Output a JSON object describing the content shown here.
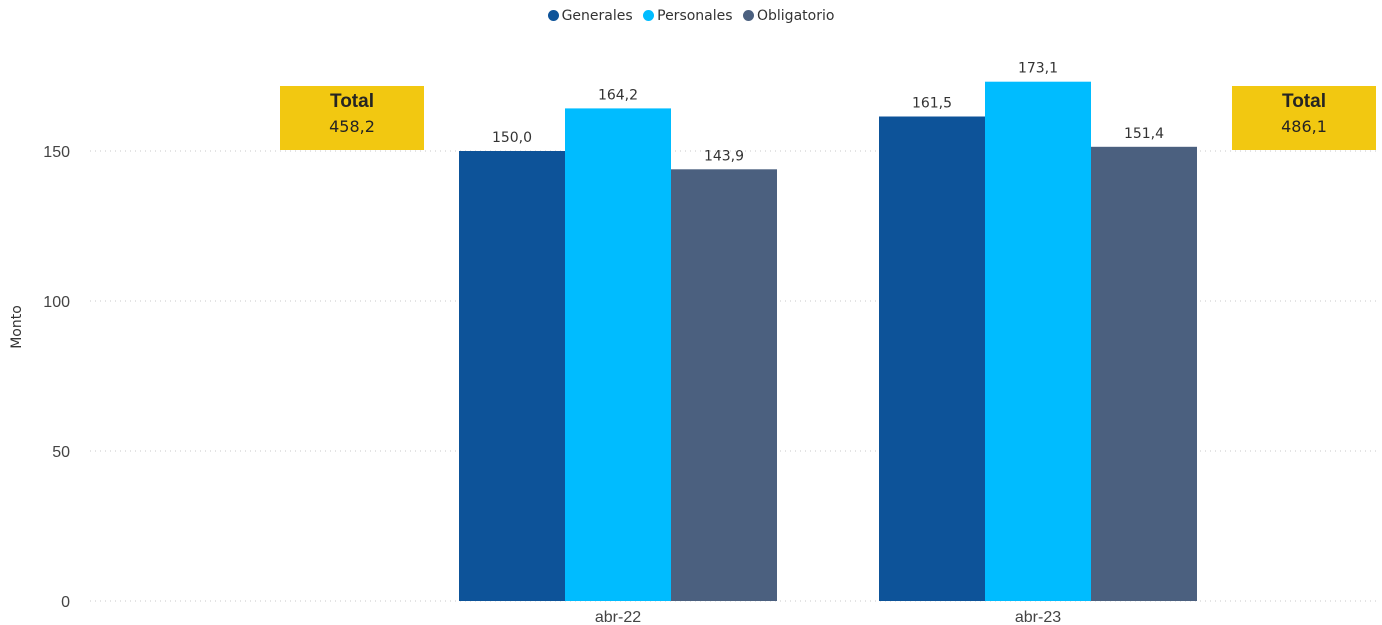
{
  "legend": [
    {
      "name": "Generales",
      "color": "#0d5399"
    },
    {
      "name": "Personales",
      "color": "#00bcff"
    },
    {
      "name": "Obligatorio",
      "color": "#4b607f"
    }
  ],
  "totals": [
    {
      "label": "Total",
      "value": "458,2"
    },
    {
      "label": "Total",
      "value": "486,1"
    }
  ],
  "chart_data": {
    "type": "bar",
    "categories": [
      "abr-22",
      "abr-23"
    ],
    "series": [
      {
        "name": "Generales",
        "color": "#0d5399",
        "values": [
          150.0,
          161.5
        ],
        "labels": [
          "150,0",
          "161,5"
        ]
      },
      {
        "name": "Personales",
        "color": "#00bcff",
        "values": [
          164.2,
          173.1
        ],
        "labels": [
          "164,2",
          "173,1"
        ]
      },
      {
        "name": "Obligatorio",
        "color": "#4b607f",
        "values": [
          143.9,
          151.4
        ],
        "labels": [
          "143,9",
          "151,4"
        ]
      }
    ],
    "ylabel": "Monto",
    "xlabel": "",
    "yticks": [
      0,
      50,
      100,
      150
    ],
    "ylim": [
      0,
      180
    ],
    "grid": true,
    "legend_position": "top-center"
  }
}
